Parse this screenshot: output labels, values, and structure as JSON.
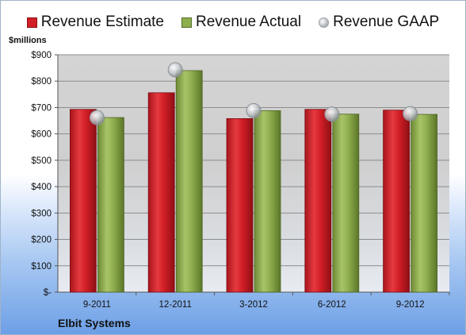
{
  "legend": {
    "estimate": "Revenue Estimate",
    "actual": "Revenue Actual",
    "gaap": "Revenue GAAP"
  },
  "units_label": "$millions",
  "company": "Elbit Systems",
  "colors": {
    "estimate": "#d21e26",
    "actual": "#8fae4e",
    "gaap": "#b7bcc2"
  },
  "chart_data": {
    "type": "bar",
    "title": "",
    "ylabel": "$millions",
    "xlabel": "",
    "ylim": [
      0,
      900
    ],
    "y_ticks": [
      0,
      100,
      200,
      300,
      400,
      500,
      600,
      700,
      800,
      900
    ],
    "y_tick_labels": [
      "$-",
      "$100",
      "$200",
      "$300",
      "$400",
      "$500",
      "$600",
      "$700",
      "$800",
      "$900"
    ],
    "categories": [
      "9-2011",
      "12-2011",
      "3-2012",
      "6-2012",
      "9-2012"
    ],
    "series": [
      {
        "name": "Revenue Estimate",
        "type": "bar",
        "values": [
          693,
          756,
          658,
          693,
          690
        ]
      },
      {
        "name": "Revenue Actual",
        "type": "bar",
        "values": [
          662,
          840,
          688,
          675,
          674
        ]
      },
      {
        "name": "Revenue GAAP",
        "type": "marker",
        "values": [
          662,
          843,
          688,
          675,
          677
        ]
      }
    ],
    "grid": true,
    "legend_position": "top"
  }
}
